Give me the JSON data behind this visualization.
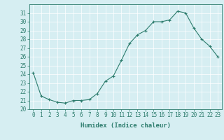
{
  "x": [
    0,
    1,
    2,
    3,
    4,
    5,
    6,
    7,
    8,
    9,
    10,
    11,
    12,
    13,
    14,
    15,
    16,
    17,
    18,
    19,
    20,
    21,
    22,
    23
  ],
  "y": [
    24.2,
    21.5,
    21.1,
    20.8,
    20.7,
    21.0,
    21.0,
    21.1,
    21.8,
    23.2,
    23.8,
    25.6,
    27.5,
    28.5,
    29.0,
    30.0,
    30.0,
    30.2,
    31.2,
    31.0,
    29.3,
    28.0,
    27.2,
    26.0
  ],
  "line_color": "#2e7d6e",
  "marker": "+",
  "marker_size": 3,
  "bg_color": "#d6eef2",
  "grid_color": "#ffffff",
  "xlabel": "Humidex (Indice chaleur)",
  "ylim": [
    20,
    32
  ],
  "xlim": [
    -0.5,
    23.5
  ],
  "yticks": [
    20,
    21,
    22,
    23,
    24,
    25,
    26,
    27,
    28,
    29,
    30,
    31
  ],
  "xticks": [
    0,
    1,
    2,
    3,
    4,
    5,
    6,
    7,
    8,
    9,
    10,
    11,
    12,
    13,
    14,
    15,
    16,
    17,
    18,
    19,
    20,
    21,
    22,
    23
  ],
  "tick_color": "#2e7d6e",
  "label_fontsize": 5.5,
  "axis_label_fontsize": 6.5,
  "linewidth": 0.8,
  "markeredgewidth": 0.8
}
